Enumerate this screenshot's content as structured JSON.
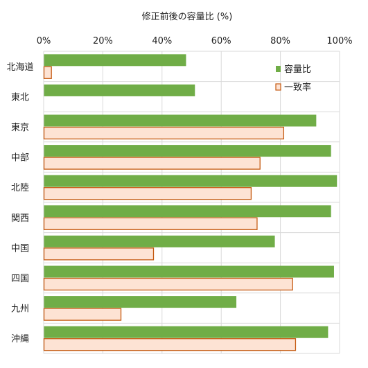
{
  "chart_data": {
    "type": "bar",
    "orientation": "horizontal",
    "title": "修正前後の容量比 (%)",
    "categories": [
      "北海道",
      "東北",
      "東京",
      "中部",
      "北陸",
      "関西",
      "中国",
      "四国",
      "九州",
      "沖縄"
    ],
    "xlim": [
      0,
      100
    ],
    "xticks": [
      0,
      20,
      40,
      60,
      80,
      100
    ],
    "xtick_labels": [
      "0%",
      "20%",
      "40%",
      "60%",
      "80%",
      "100%"
    ],
    "grid": true,
    "legend_position": "top-right",
    "series": [
      {
        "name": "容量比",
        "color": "#70ad47",
        "stroke": "#70ad47",
        "values": [
          48,
          51,
          92,
          97,
          99,
          97,
          78,
          98,
          65,
          96
        ]
      },
      {
        "name": "一致率",
        "color": "#fde3d4",
        "stroke": "#c55a11",
        "values": [
          2.5,
          0,
          81,
          73,
          70,
          72,
          37,
          84,
          26,
          85
        ]
      }
    ]
  }
}
